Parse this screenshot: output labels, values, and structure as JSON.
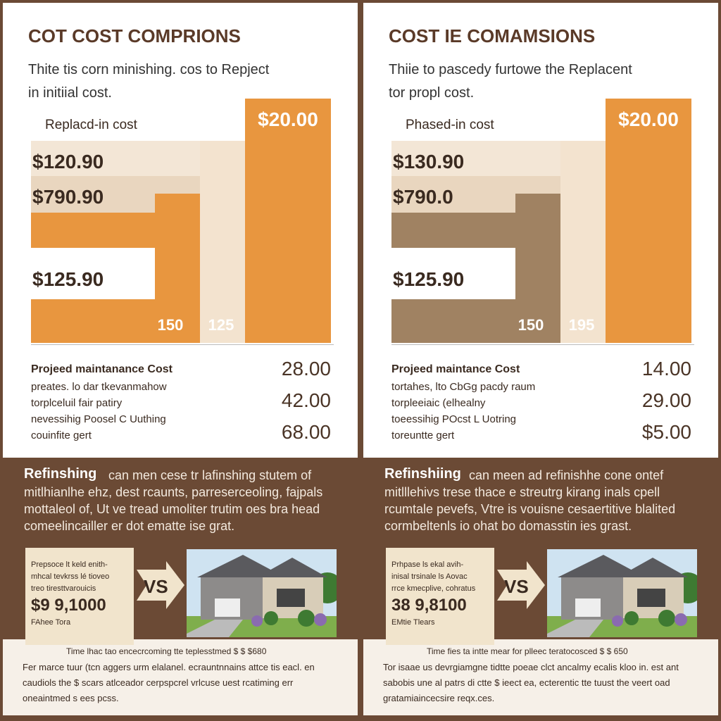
{
  "panels": [
    {
      "title": "COT COST COMPRIONS",
      "subtitle": [
        "Thite tis corn minishing. cos to Repject",
        "in initiial cost."
      ],
      "chart_label": "Replacd-in cost",
      "band_labels": [
        "$120.90",
        "$790.90",
        "$125.90"
      ],
      "top_label": "$20.00",
      "bottom_labels": [
        "150",
        "125"
      ],
      "list": [
        "Projeed maintanance Cost",
        "preates. lo dar tkevanmahow",
        "torplceluil fair patiry",
        "nevessihig Poosel C Uuthing",
        "couinfite gert"
      ],
      "list_values": [
        "28.00",
        "42.00",
        "68.00"
      ],
      "paragraph": {
        "lead": "Refinshing",
        "lines": [
          "can men cese tr lafinshing stutem of",
          "mitlhianlhe ehz, dest rcaunts, parreserceoling, fajpals",
          "mottaleol of, Ut ve tread umoliter trutim oes bra head",
          "comeelincailler er dot ematte ise grat."
        ]
      },
      "card": {
        "lines": [
          "Prepsoce lt keld enith-",
          "mhcal tevkrss lé tioveo",
          "treo tiresttvarouicis"
        ],
        "price": "$9 9,1000",
        "note": "FAhee Tora"
      },
      "vs": "VS",
      "footer": [
        "Time lhac tao encecrcoming tte teplesstmed $ $ $680",
        "Fer marce tuur (tcn aggers urm elalanel. ecrauntnnains attce tis eacl. en",
        "caudiols the $ scars atlceador cerpspcrel vrlcuse uest rcatiming err",
        "oneaintmed s ees pcss."
      ]
    },
    {
      "title": "COST IE COMAMSIONS",
      "subtitle": [
        "Thiie to pascedy furtowe the Replacent",
        "tor propl cost."
      ],
      "chart_label": "Phased-in cost",
      "band_labels": [
        "$130.90",
        "$790.0",
        "$125.90"
      ],
      "top_label": "$20.00",
      "bottom_labels": [
        "150",
        "195"
      ],
      "list": [
        "Projeed maintance Cost",
        "tortahes, lto CbGg pacdy raum",
        "torpleeiaic (elhealny",
        "toeessihig POcst L Uotring",
        "toreuntte gert"
      ],
      "list_values": [
        "14.00",
        "29.00",
        "$5.00"
      ],
      "paragraph": {
        "lead": "Refinshiing",
        "lines": [
          "can meen ad refinishhe cone ontef",
          "mitlllehivs trese thace e streutrg kirang inals cpell",
          "rcumtale pevefs, Vtre is vouisne cesaertitive blalited",
          "cormbeltenls io ohat bo domasstin ies grast."
        ]
      },
      "card": {
        "lines": [
          "Prhpase ls ekal avih-",
          "inisal trsinale ls Aovac",
          "rrce kmecplive, cohratus"
        ],
        "price": "38 9,8100",
        "note": "EMtie Tlears"
      },
      "vs": "VS",
      "footer": [
        "Time fies ta intte mear for plleec teratocosced $ $ 650",
        "Tor isaae us devrgiamgne tidtte poeae clct ancalmy ecalis kloo in. est ant",
        "sabobis une al patrs di ctte $ ieect ea, ecterentic tte tuust the veert oad",
        "gratamiaincecsire reqx.ces."
      ]
    }
  ]
}
